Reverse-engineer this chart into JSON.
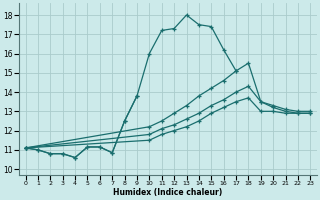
{
  "xlabel": "Humidex (Indice chaleur)",
  "ylabel": "",
  "xlim": [
    -0.5,
    23.5
  ],
  "ylim": [
    9.7,
    18.6
  ],
  "background_color": "#cceaea",
  "grid_color": "#aacccc",
  "line_color": "#1a6e6e",
  "xticks": [
    0,
    1,
    2,
    3,
    4,
    5,
    6,
    7,
    8,
    9,
    10,
    11,
    12,
    13,
    14,
    15,
    16,
    17,
    18,
    19,
    20,
    21,
    22,
    23
  ],
  "yticks": [
    10,
    11,
    12,
    13,
    14,
    15,
    16,
    17,
    18
  ],
  "lines": [
    {
      "x": [
        0,
        1,
        2,
        3,
        4,
        5,
        6,
        7,
        8,
        9,
        10,
        11,
        12,
        13,
        14,
        15,
        16,
        17
      ],
      "y": [
        11.1,
        11.0,
        10.8,
        10.8,
        10.6,
        11.15,
        11.15,
        10.85,
        12.5,
        13.8,
        16.0,
        17.2,
        17.3,
        18.0,
        17.5,
        17.4,
        16.2,
        15.1
      ]
    },
    {
      "x": [
        0,
        1,
        2,
        3,
        4,
        5,
        6,
        7,
        8,
        9
      ],
      "y": [
        11.1,
        11.0,
        10.8,
        10.8,
        10.6,
        11.15,
        11.15,
        10.85,
        12.5,
        13.8
      ]
    },
    {
      "x": [
        0,
        10,
        11,
        12,
        13,
        14,
        15,
        16,
        17,
        18,
        19,
        20,
        21,
        22,
        23
      ],
      "y": [
        11.1,
        11.5,
        11.8,
        12.0,
        12.2,
        12.5,
        12.9,
        13.2,
        13.5,
        13.7,
        13.0,
        13.0,
        12.9,
        12.9,
        12.9
      ]
    },
    {
      "x": [
        0,
        10,
        11,
        12,
        13,
        14,
        15,
        16,
        17,
        18,
        19,
        20,
        21,
        22,
        23
      ],
      "y": [
        11.1,
        11.8,
        12.1,
        12.3,
        12.6,
        12.9,
        13.3,
        13.6,
        14.0,
        14.3,
        13.5,
        13.3,
        13.1,
        13.0,
        13.0
      ]
    },
    {
      "x": [
        0,
        10,
        11,
        12,
        13,
        14,
        15,
        16,
        17,
        18,
        19,
        20,
        21,
        22,
        23
      ],
      "y": [
        11.1,
        12.2,
        12.5,
        12.9,
        13.3,
        13.8,
        14.2,
        14.6,
        15.1,
        15.5,
        13.5,
        13.2,
        13.0,
        12.9,
        12.9
      ]
    }
  ]
}
